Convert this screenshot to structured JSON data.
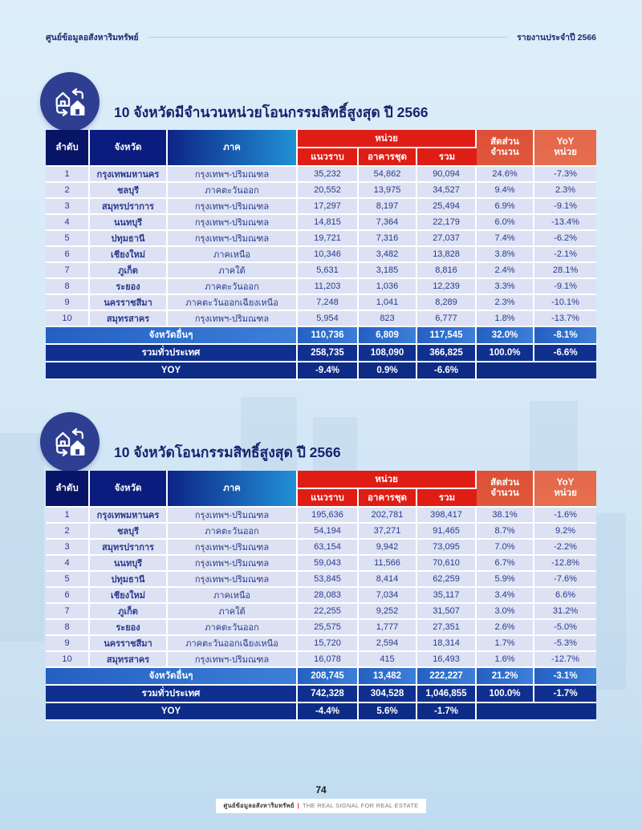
{
  "page_header": {
    "left": "ศูนย์ข้อมูลอสังหาริมทรัพย์",
    "right": "รายงานประจำปี 2566"
  },
  "colors": {
    "navy": "#0a1d7e",
    "red": "#df1d15",
    "coral": "#e0573c",
    "blue_row": "#2d6cc9",
    "row_bg": "#dce1f3",
    "page_bg": "#d9ebf7"
  },
  "columns": {
    "rank": "ลำดับ",
    "province": "จังหวัด",
    "region": "ภาค",
    "units_group": "หน่วย",
    "low_rise": "แนวราบ",
    "condo": "อาคารชุด",
    "total": "รวม",
    "share_l1": "สัดส่วน",
    "share_l2": "จำนวน",
    "yoy_l1": "YoY",
    "yoy_l2": "หน่วย"
  },
  "sections": [
    {
      "title": "10 จังหวัดมีจำนวนหน่วยโอนกรรมสิทธิ์สูงสุด ปี 2566",
      "table": {
        "rows": [
          [
            "1",
            "กรุงเทพมหานคร",
            "กรุงเทพฯ-ปริมณฑล",
            "35,232",
            "54,862",
            "90,094",
            "24.6%",
            "-7.3%"
          ],
          [
            "2",
            "ชลบุรี",
            "ภาคตะวันออก",
            "20,552",
            "13,975",
            "34,527",
            "9.4%",
            "2.3%"
          ],
          [
            "3",
            "สมุทรปราการ",
            "กรุงเทพฯ-ปริมณฑล",
            "17,297",
            "8,197",
            "25,494",
            "6.9%",
            "-9.1%"
          ],
          [
            "4",
            "นนทบุรี",
            "กรุงเทพฯ-ปริมณฑล",
            "14,815",
            "7,364",
            "22,179",
            "6.0%",
            "-13.4%"
          ],
          [
            "5",
            "ปทุมธานี",
            "กรุงเทพฯ-ปริมณฑล",
            "19,721",
            "7,316",
            "27,037",
            "7.4%",
            "-6.2%"
          ],
          [
            "6",
            "เชียงใหม่",
            "ภาคเหนือ",
            "10,346",
            "3,482",
            "13,828",
            "3.8%",
            "-2.1%"
          ],
          [
            "7",
            "ภูเก็ต",
            "ภาคใต้",
            "5,631",
            "3,185",
            "8,816",
            "2.4%",
            "28.1%"
          ],
          [
            "8",
            "ระยอง",
            "ภาคตะวันออก",
            "11,203",
            "1,036",
            "12,239",
            "3.3%",
            "-9.1%"
          ],
          [
            "9",
            "นครราชสีมา",
            "ภาคตะวันออกเฉียงเหนือ",
            "7,248",
            "1,041",
            "8,289",
            "2.3%",
            "-10.1%"
          ],
          [
            "10",
            "สมุทรสาคร",
            "กรุงเทพฯ-ปริมณฑล",
            "5,954",
            "823",
            "6,777",
            "1.8%",
            "-13.7%"
          ]
        ],
        "other_label": "จังหวัดอื่นๆ",
        "other": [
          "110,736",
          "6,809",
          "117,545",
          "32.0%",
          "-8.1%"
        ],
        "total_label": "รวมทั่วประเทศ",
        "total": [
          "258,735",
          "108,090",
          "366,825",
          "100.0%",
          "-6.6%"
        ],
        "yoy_label": "YOY",
        "yoy": [
          "-9.4%",
          "0.9%",
          "-6.6%"
        ]
      }
    },
    {
      "title": "10 จังหวัดโอนกรรมสิทธิ์สูงสุด ปี 2566",
      "table": {
        "rows": [
          [
            "1",
            "กรุงเทพมหานคร",
            "กรุงเทพฯ-ปริมณฑล",
            "195,636",
            "202,781",
            "398,417",
            "38.1%",
            "-1.6%"
          ],
          [
            "2",
            "ชลบุรี",
            "ภาคตะวันออก",
            "54,194",
            "37,271",
            "91,465",
            "8.7%",
            "9.2%"
          ],
          [
            "3",
            "สมุทรปราการ",
            "กรุงเทพฯ-ปริมณฑล",
            "63,154",
            "9,942",
            "73,095",
            "7.0%",
            "-2.2%"
          ],
          [
            "4",
            "นนทบุรี",
            "กรุงเทพฯ-ปริมณฑล",
            "59,043",
            "11,566",
            "70,610",
            "6.7%",
            "-12.8%"
          ],
          [
            "5",
            "ปทุมธานี",
            "กรุงเทพฯ-ปริมณฑล",
            "53,845",
            "8,414",
            "62,259",
            "5.9%",
            "-7.6%"
          ],
          [
            "6",
            "เชียงใหม่",
            "ภาคเหนือ",
            "28,083",
            "7,034",
            "35,117",
            "3.4%",
            "6.6%"
          ],
          [
            "7",
            "ภูเก็ต",
            "ภาคใต้",
            "22,255",
            "9,252",
            "31,507",
            "3.0%",
            "31.2%"
          ],
          [
            "8",
            "ระยอง",
            "ภาคตะวันออก",
            "25,575",
            "1,777",
            "27,351",
            "2.6%",
            "-5.0%"
          ],
          [
            "9",
            "นครราชสีมา",
            "ภาคตะวันออกเฉียงเหนือ",
            "15,720",
            "2,594",
            "18,314",
            "1.7%",
            "-5.3%"
          ],
          [
            "10",
            "สมุทรสาคร",
            "กรุงเทพฯ-ปริมณฑล",
            "16,078",
            "415",
            "16,493",
            "1.6%",
            "-12.7%"
          ]
        ],
        "other_label": "จังหวัดอื่นๆ",
        "other": [
          "208,745",
          "13,482",
          "222,227",
          "21.2%",
          "-3.1%"
        ],
        "total_label": "รวมทั่วประเทศ",
        "total": [
          "742,328",
          "304,528",
          "1,046,855",
          "100.0%",
          "-1.7%"
        ],
        "yoy_label": "YOY",
        "yoy": [
          "-4.4%",
          "5.6%",
          "-1.7%"
        ]
      }
    }
  ],
  "footer": {
    "page_number": "74",
    "brand_thai": "ศูนย์ข้อมูลอสังหาริมทรัพย์",
    "brand_divider": "|",
    "brand_en": "THE REAL SIGNAL FOR REAL ESTATE"
  }
}
